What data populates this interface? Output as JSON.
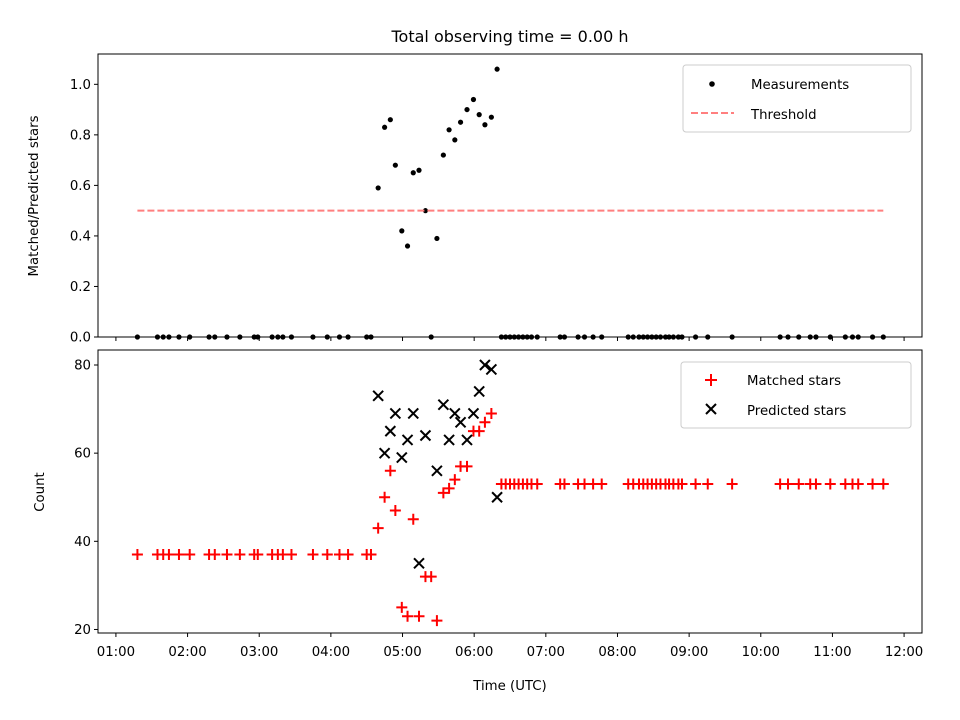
{
  "chart_data": {
    "title": "Total observing time = 0.00 h",
    "xlabel": "Time (UTC)",
    "x_unit": "hours UTC",
    "xlim": [
      0.75,
      12.25
    ],
    "xticks": [
      1,
      2,
      3,
      4,
      5,
      6,
      7,
      8,
      9,
      10,
      11,
      12
    ],
    "xtick_labels": [
      "01:00",
      "02:00",
      "03:00",
      "04:00",
      "05:00",
      "06:00",
      "07:00",
      "08:00",
      "09:00",
      "10:00",
      "11:00",
      "12:00"
    ],
    "panels": [
      {
        "type": "scatter",
        "ylabel": "Matched/Predicted stars",
        "ylim": [
          0,
          1.12
        ],
        "yticks": [
          0,
          0.2,
          0.4,
          0.6,
          0.8,
          1.0
        ],
        "ytick_labels": [
          "0.0",
          "0.2",
          "0.4",
          "0.6",
          "0.8",
          "1.0"
        ],
        "legend_position": "upper right",
        "series": [
          {
            "name": "Measurements",
            "marker": "dot",
            "color": "#000000",
            "points": [
              [
                1.3,
                0
              ],
              [
                1.58,
                0
              ],
              [
                1.66,
                0
              ],
              [
                1.74,
                0
              ],
              [
                1.88,
                0
              ],
              [
                2.03,
                0
              ],
              [
                2.3,
                0
              ],
              [
                2.38,
                0
              ],
              [
                2.55,
                0
              ],
              [
                2.73,
                0
              ],
              [
                2.93,
                0
              ],
              [
                2.98,
                0
              ],
              [
                3.18,
                0
              ],
              [
                3.26,
                0
              ],
              [
                3.33,
                0
              ],
              [
                3.45,
                0
              ],
              [
                3.75,
                0
              ],
              [
                3.95,
                0
              ],
              [
                4.12,
                0
              ],
              [
                4.24,
                0
              ],
              [
                4.5,
                0
              ],
              [
                4.56,
                0
              ],
              [
                5.4,
                0
              ],
              [
                6.38,
                0
              ],
              [
                6.44,
                0
              ],
              [
                6.5,
                0
              ],
              [
                6.56,
                0
              ],
              [
                6.62,
                0
              ],
              [
                6.68,
                0
              ],
              [
                6.74,
                0
              ],
              [
                6.8,
                0
              ],
              [
                6.88,
                0
              ],
              [
                7.2,
                0
              ],
              [
                7.26,
                0
              ],
              [
                7.45,
                0
              ],
              [
                7.54,
                0
              ],
              [
                7.66,
                0
              ],
              [
                7.78,
                0
              ],
              [
                8.15,
                0
              ],
              [
                8.22,
                0
              ],
              [
                8.3,
                0
              ],
              [
                8.36,
                0
              ],
              [
                8.42,
                0
              ],
              [
                8.48,
                0
              ],
              [
                8.54,
                0
              ],
              [
                8.6,
                0
              ],
              [
                8.67,
                0
              ],
              [
                8.72,
                0
              ],
              [
                8.78,
                0
              ],
              [
                8.85,
                0
              ],
              [
                8.9,
                0
              ],
              [
                9.09,
                0
              ],
              [
                9.26,
                0
              ],
              [
                9.6,
                0
              ],
              [
                10.27,
                0
              ],
              [
                10.38,
                0
              ],
              [
                10.53,
                0
              ],
              [
                10.69,
                0
              ],
              [
                10.77,
                0
              ],
              [
                10.97,
                0
              ],
              [
                11.18,
                0
              ],
              [
                11.28,
                0
              ],
              [
                11.36,
                0
              ],
              [
                11.56,
                0
              ],
              [
                11.71,
                0
              ],
              [
                4.66,
                0.59
              ],
              [
                4.75,
                0.83
              ],
              [
                4.83,
                0.86
              ],
              [
                4.9,
                0.68
              ],
              [
                4.99,
                0.42
              ],
              [
                5.07,
                0.36
              ],
              [
                5.15,
                0.65
              ],
              [
                5.23,
                0.66
              ],
              [
                5.32,
                0.5
              ],
              [
                5.48,
                0.39
              ],
              [
                5.57,
                0.72
              ],
              [
                5.65,
                0.82
              ],
              [
                5.73,
                0.78
              ],
              [
                5.81,
                0.85
              ],
              [
                5.9,
                0.9
              ],
              [
                5.99,
                0.94
              ],
              [
                6.07,
                0.88
              ],
              [
                6.15,
                0.84
              ],
              [
                6.24,
                0.87
              ],
              [
                6.32,
                1.06
              ]
            ]
          },
          {
            "name": "Threshold",
            "marker": "dashed-line",
            "color": "#ff7f7f",
            "points": [
              [
                1.3,
                0.5
              ],
              [
                11.71,
                0.5
              ]
            ]
          }
        ]
      },
      {
        "type": "scatter",
        "ylabel": "Count",
        "ylim": [
          19.2,
          83.4
        ],
        "yticks": [
          20,
          40,
          60,
          80
        ],
        "ytick_labels": [
          "20",
          "40",
          "60",
          "80"
        ],
        "legend_position": "upper right",
        "series": [
          {
            "name": "Matched stars",
            "marker": "plus",
            "color": "#ff0000",
            "points": [
              [
                1.3,
                37
              ],
              [
                1.58,
                37
              ],
              [
                1.66,
                37
              ],
              [
                1.74,
                37
              ],
              [
                1.88,
                37
              ],
              [
                2.03,
                37
              ],
              [
                2.3,
                37
              ],
              [
                2.38,
                37
              ],
              [
                2.55,
                37
              ],
              [
                2.73,
                37
              ],
              [
                2.93,
                37
              ],
              [
                2.98,
                37
              ],
              [
                3.18,
                37
              ],
              [
                3.26,
                37
              ],
              [
                3.33,
                37
              ],
              [
                3.45,
                37
              ],
              [
                3.75,
                37
              ],
              [
                3.95,
                37
              ],
              [
                4.12,
                37
              ],
              [
                4.24,
                37
              ],
              [
                4.5,
                37
              ],
              [
                4.56,
                37
              ],
              [
                4.66,
                43
              ],
              [
                4.75,
                50
              ],
              [
                4.83,
                56
              ],
              [
                4.9,
                47
              ],
              [
                4.99,
                25
              ],
              [
                5.07,
                23
              ],
              [
                5.15,
                45
              ],
              [
                5.23,
                23
              ],
              [
                5.32,
                32
              ],
              [
                5.4,
                32
              ],
              [
                5.48,
                22
              ],
              [
                5.57,
                51
              ],
              [
                5.65,
                52
              ],
              [
                5.73,
                54
              ],
              [
                5.81,
                57
              ],
              [
                5.9,
                57
              ],
              [
                5.99,
                65
              ],
              [
                6.07,
                65
              ],
              [
                6.15,
                67
              ],
              [
                6.24,
                69
              ],
              [
                6.38,
                53
              ],
              [
                6.44,
                53
              ],
              [
                6.5,
                53
              ],
              [
                6.56,
                53
              ],
              [
                6.62,
                53
              ],
              [
                6.68,
                53
              ],
              [
                6.74,
                53
              ],
              [
                6.8,
                53
              ],
              [
                6.88,
                53
              ],
              [
                7.2,
                53
              ],
              [
                7.26,
                53
              ],
              [
                7.45,
                53
              ],
              [
                7.54,
                53
              ],
              [
                7.66,
                53
              ],
              [
                7.78,
                53
              ],
              [
                8.15,
                53
              ],
              [
                8.22,
                53
              ],
              [
                8.3,
                53
              ],
              [
                8.36,
                53
              ],
              [
                8.42,
                53
              ],
              [
                8.48,
                53
              ],
              [
                8.54,
                53
              ],
              [
                8.6,
                53
              ],
              [
                8.67,
                53
              ],
              [
                8.72,
                53
              ],
              [
                8.78,
                53
              ],
              [
                8.85,
                53
              ],
              [
                8.9,
                53
              ],
              [
                9.09,
                53
              ],
              [
                9.26,
                53
              ],
              [
                9.6,
                53
              ],
              [
                10.27,
                53
              ],
              [
                10.38,
                53
              ],
              [
                10.53,
                53
              ],
              [
                10.69,
                53
              ],
              [
                10.77,
                53
              ],
              [
                10.97,
                53
              ],
              [
                11.18,
                53
              ],
              [
                11.28,
                53
              ],
              [
                11.36,
                53
              ],
              [
                11.56,
                53
              ],
              [
                11.71,
                53
              ]
            ]
          },
          {
            "name": "Predicted stars",
            "marker": "x",
            "color": "#000000",
            "points": [
              [
                4.66,
                73
              ],
              [
                4.75,
                60
              ],
              [
                4.83,
                65
              ],
              [
                4.9,
                69
              ],
              [
                4.99,
                59
              ],
              [
                5.07,
                63
              ],
              [
                5.15,
                69
              ],
              [
                5.23,
                35
              ],
              [
                5.32,
                64
              ],
              [
                5.48,
                56
              ],
              [
                5.57,
                71
              ],
              [
                5.65,
                63
              ],
              [
                5.73,
                69
              ],
              [
                5.81,
                67
              ],
              [
                5.9,
                63
              ],
              [
                5.99,
                69
              ],
              [
                6.07,
                74
              ],
              [
                6.15,
                80
              ],
              [
                6.24,
                79
              ],
              [
                6.32,
                50
              ]
            ]
          }
        ]
      }
    ]
  }
}
